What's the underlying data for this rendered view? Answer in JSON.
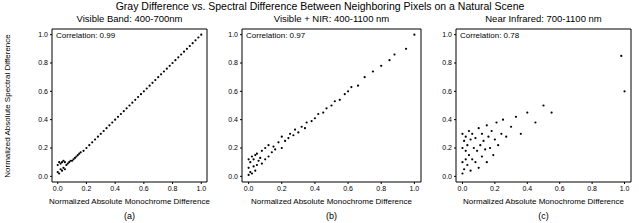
{
  "title": "Gray Difference vs. Spectral Difference Between Neighboring Pixels on a Natural Scene",
  "chart_data": [
    {
      "type": "scatter",
      "title": "Visible Band: 400-700nm",
      "panel_label": "(a)",
      "annotations": [
        "Correlation: 0.99"
      ],
      "x_label": "Normalized Absolute Monochrome Difference",
      "y_label": "Normalized Absolute Spectral Difference",
      "color": "#000000",
      "grid": false,
      "xlim": [
        -0.04,
        1.04
      ],
      "ylim": [
        -0.04,
        1.04
      ],
      "xticks": [
        {
          "value": 0,
          "label": "0.0"
        },
        0.2,
        0.4,
        0.6,
        0.8,
        {
          "value": 1,
          "label": "1.0"
        }
      ],
      "yticks": [
        {
          "value": 0,
          "label": "0.0"
        },
        0.2,
        0.4,
        0.6,
        0.8,
        {
          "value": 1,
          "label": "1.0"
        }
      ],
      "x": [
        0,
        0,
        0.01,
        0.01,
        0.02,
        0.02,
        0.03,
        0.03,
        0.04,
        0.04,
        0.05,
        0.05,
        0.06,
        0.07,
        0.08,
        0.09,
        0.1,
        0.11,
        0.12,
        0.13,
        0.14,
        0.15,
        0.16,
        0.18,
        0.2,
        0.22,
        0.24,
        0.26,
        0.28,
        0.3,
        0.32,
        0.34,
        0.36,
        0.38,
        0.4,
        0.42,
        0.44,
        0.46,
        0.48,
        0.5,
        0.52,
        0.54,
        0.56,
        0.58,
        0.6,
        0.62,
        0.64,
        0.66,
        0.68,
        0.7,
        0.72,
        0.74,
        0.76,
        0.78,
        0.8,
        0.82,
        0.84,
        0.86,
        0.88,
        0.9,
        0.92,
        0.94,
        0.96,
        0.98,
        1.0
      ],
      "values": [
        0.03,
        0.08,
        0.02,
        0.1,
        0.05,
        0.09,
        0.04,
        0.1,
        0.06,
        0.11,
        0.05,
        0.1,
        0.08,
        0.09,
        0.1,
        0.11,
        0.11,
        0.12,
        0.13,
        0.14,
        0.15,
        0.16,
        0.17,
        0.18,
        0.2,
        0.22,
        0.24,
        0.26,
        0.28,
        0.3,
        0.32,
        0.34,
        0.36,
        0.38,
        0.4,
        0.42,
        0.44,
        0.46,
        0.48,
        0.5,
        0.52,
        0.54,
        0.56,
        0.58,
        0.6,
        0.62,
        0.64,
        0.66,
        0.68,
        0.7,
        0.72,
        0.74,
        0.76,
        0.78,
        0.8,
        0.82,
        0.84,
        0.86,
        0.88,
        0.9,
        0.92,
        0.94,
        0.96,
        0.98,
        1.0
      ]
    },
    {
      "type": "scatter",
      "title": "Visible + NIR: 400-1100 nm",
      "panel_label": "(b)",
      "annotations": [
        "Correlation: 0.97"
      ],
      "x_label": "Normalized Absolute Monochrome Difference",
      "color": "#000000",
      "grid": false,
      "xlim": [
        -0.04,
        1.04
      ],
      "ylim": [
        -0.04,
        1.04
      ],
      "xticks": [
        {
          "value": 0,
          "label": "0.0"
        },
        0.2,
        0.4,
        0.6,
        0.8,
        {
          "value": 1,
          "label": "1.0"
        }
      ],
      "yticks": [
        {
          "value": 0,
          "label": "0.0"
        },
        0.2,
        0.4,
        0.6,
        0.8,
        {
          "value": 1,
          "label": "1.0"
        }
      ],
      "x": [
        0,
        0,
        0,
        0.01,
        0.01,
        0.02,
        0.02,
        0.03,
        0.03,
        0.04,
        0.04,
        0.05,
        0.05,
        0.06,
        0.07,
        0.08,
        0.08,
        0.1,
        0.1,
        0.12,
        0.12,
        0.14,
        0.15,
        0.16,
        0.18,
        0.2,
        0.2,
        0.22,
        0.24,
        0.25,
        0.27,
        0.28,
        0.3,
        0.32,
        0.34,
        0.35,
        0.38,
        0.4,
        0.42,
        0.45,
        0.47,
        0.5,
        0.52,
        0.55,
        0.58,
        0.6,
        0.62,
        0.66,
        0.7,
        0.75,
        0.8,
        0.85,
        0.88,
        0.95,
        1.0
      ],
      "values": [
        0.01,
        0.06,
        0.12,
        0.03,
        0.1,
        0.02,
        0.14,
        0.07,
        0.12,
        0.04,
        0.15,
        0.08,
        0.16,
        0.11,
        0.13,
        0.09,
        0.18,
        0.12,
        0.2,
        0.14,
        0.22,
        0.17,
        0.21,
        0.19,
        0.24,
        0.2,
        0.28,
        0.25,
        0.27,
        0.3,
        0.29,
        0.33,
        0.31,
        0.35,
        0.34,
        0.38,
        0.39,
        0.41,
        0.44,
        0.45,
        0.48,
        0.5,
        0.53,
        0.54,
        0.58,
        0.6,
        0.63,
        0.64,
        0.7,
        0.74,
        0.78,
        0.82,
        0.86,
        0.9,
        1.0
      ]
    },
    {
      "type": "scatter",
      "title": "Near Infrared: 700-1100 nm",
      "panel_label": "(c)",
      "annotations": [
        "Correlation: 0.78"
      ],
      "x_label": "Normalized Absolute Monochrome Difference",
      "color": "#000000",
      "grid": false,
      "xlim": [
        -0.04,
        1.04
      ],
      "ylim": [
        -0.04,
        1.04
      ],
      "xticks": [
        {
          "value": 0,
          "label": "0.0"
        },
        0.2,
        0.4,
        0.6,
        0.8,
        {
          "value": 1,
          "label": "1.0"
        }
      ],
      "yticks": [
        {
          "value": 0,
          "label": "0.0"
        },
        0.2,
        0.4,
        0.6,
        0.8,
        {
          "value": 1,
          "label": "1.0"
        }
      ],
      "x": [
        0,
        0,
        0,
        0,
        0.01,
        0.01,
        0.02,
        0.02,
        0.02,
        0.03,
        0.03,
        0.04,
        0.04,
        0.05,
        0.05,
        0.06,
        0.06,
        0.07,
        0.08,
        0.08,
        0.09,
        0.1,
        0.1,
        0.11,
        0.12,
        0.12,
        0.13,
        0.14,
        0.15,
        0.15,
        0.16,
        0.17,
        0.18,
        0.19,
        0.2,
        0.21,
        0.22,
        0.24,
        0.25,
        0.27,
        0.3,
        0.33,
        0.36,
        0.4,
        0.45,
        0.5,
        0.55,
        0.98,
        1.0
      ],
      "values": [
        0.02,
        0.1,
        0.2,
        0.3,
        0.05,
        0.25,
        0.12,
        0.18,
        0.28,
        0.08,
        0.22,
        0.15,
        0.32,
        0.04,
        0.26,
        0.12,
        0.3,
        0.2,
        0.1,
        0.27,
        0.18,
        0.06,
        0.34,
        0.22,
        0.14,
        0.3,
        0.25,
        0.19,
        0.1,
        0.36,
        0.28,
        0.2,
        0.32,
        0.15,
        0.26,
        0.38,
        0.22,
        0.3,
        0.4,
        0.28,
        0.35,
        0.42,
        0.3,
        0.45,
        0.38,
        0.5,
        0.45,
        0.85,
        0.6
      ]
    }
  ]
}
